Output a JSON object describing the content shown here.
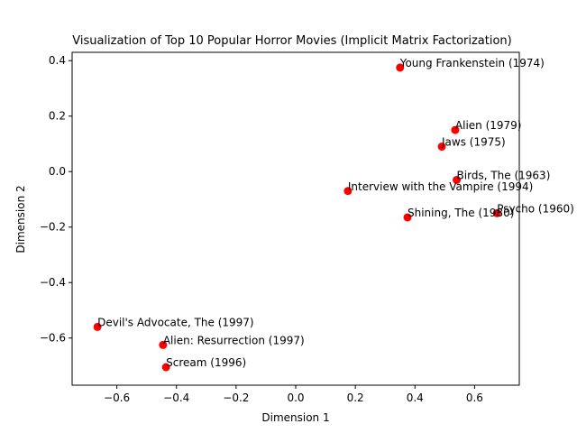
{
  "chart_data": {
    "type": "scatter",
    "title": "Visualization of Top 10 Popular Horror Movies (Implicit Matrix Factorization)",
    "xlabel": "Dimension 1",
    "ylabel": "Dimension 2",
    "xlim": [
      -0.75,
      0.75
    ],
    "ylim": [
      -0.77,
      0.43
    ],
    "xticks": [
      -0.6,
      -0.4,
      -0.2,
      0.0,
      0.2,
      0.4,
      0.6
    ],
    "xtick_labels": [
      "−0.6",
      "−0.4",
      "−0.2",
      "0.0",
      "0.2",
      "0.4",
      "0.6"
    ],
    "yticks": [
      -0.6,
      -0.4,
      -0.2,
      0.0,
      0.2,
      0.4
    ],
    "ytick_labels": [
      "−0.6",
      "−0.4",
      "−0.2",
      "0.0",
      "0.2",
      "0.4"
    ],
    "grid": false,
    "marker_color": "#ff0000",
    "points": [
      {
        "label": "Young Frankenstein (1974)",
        "x": 0.35,
        "y": 0.375
      },
      {
        "label": "Alien (1979)",
        "x": 0.535,
        "y": 0.15
      },
      {
        "label": "Jaws (1975)",
        "x": 0.49,
        "y": 0.09
      },
      {
        "label": "Birds, The (1963)",
        "x": 0.54,
        "y": -0.03
      },
      {
        "label": "Interview with the Vampire (1994)",
        "x": 0.175,
        "y": -0.07
      },
      {
        "label": "Psycho (1960)",
        "x": 0.675,
        "y": -0.15
      },
      {
        "label": "Shining, The (1980)",
        "x": 0.375,
        "y": -0.165
      },
      {
        "label": "Devil's Advocate, The (1997)",
        "x": -0.665,
        "y": -0.56
      },
      {
        "label": "Alien: Resurrection (1997)",
        "x": -0.445,
        "y": -0.625
      },
      {
        "label": "Scream (1996)",
        "x": -0.435,
        "y": -0.705
      }
    ]
  }
}
